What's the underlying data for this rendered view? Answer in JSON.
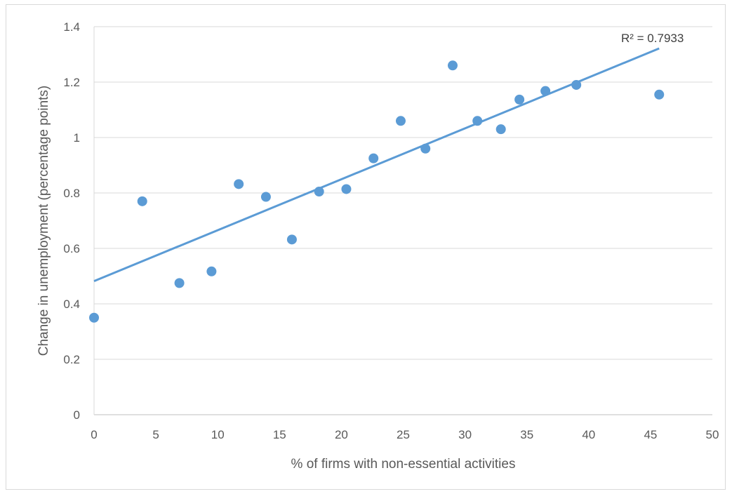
{
  "chart_data": {
    "type": "scatter",
    "title": "",
    "xlabel": "% of firms with non-essential activities",
    "ylabel": "Change in unemployment (percentage points)",
    "xlim": [
      0,
      50
    ],
    "ylim": [
      0,
      1.4
    ],
    "x_ticks": [
      0,
      5,
      10,
      15,
      20,
      25,
      30,
      35,
      40,
      45,
      50
    ],
    "y_ticks": [
      0,
      0.2,
      0.4,
      0.6,
      0.8,
      1,
      1.2,
      1.4
    ],
    "grid": "horizontal",
    "legend": "none",
    "series": [
      {
        "color": "#5b9bd5",
        "points": [
          {
            "x": 0.0,
            "y": 0.35
          },
          {
            "x": 3.9,
            "y": 0.77
          },
          {
            "x": 6.9,
            "y": 0.475
          },
          {
            "x": 9.5,
            "y": 0.517
          },
          {
            "x": 11.7,
            "y": 0.832
          },
          {
            "x": 13.9,
            "y": 0.786
          },
          {
            "x": 16.0,
            "y": 0.632
          },
          {
            "x": 18.2,
            "y": 0.805
          },
          {
            "x": 20.4,
            "y": 0.814
          },
          {
            "x": 22.6,
            "y": 0.925
          },
          {
            "x": 24.8,
            "y": 1.06
          },
          {
            "x": 26.8,
            "y": 0.96
          },
          {
            "x": 29.0,
            "y": 1.26
          },
          {
            "x": 31.0,
            "y": 1.06
          },
          {
            "x": 32.9,
            "y": 1.03
          },
          {
            "x": 34.4,
            "y": 1.137
          },
          {
            "x": 36.5,
            "y": 1.168
          },
          {
            "x": 39.0,
            "y": 1.19
          },
          {
            "x": 45.7,
            "y": 1.155
          }
        ]
      }
    ],
    "trendline": {
      "type": "linear",
      "color": "#5b9bd5",
      "x_start": 0,
      "x_end": 45.7,
      "intercept": 0.482,
      "slope": 0.01837,
      "r2_label": "R² = 0.7933"
    }
  }
}
